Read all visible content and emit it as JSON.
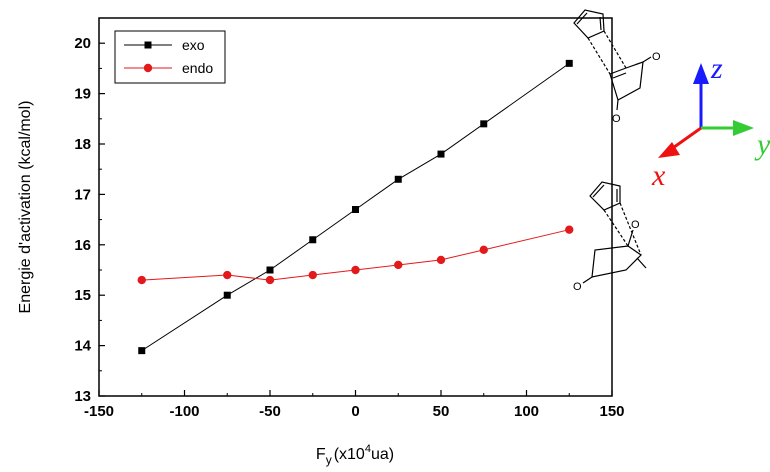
{
  "chart_data": {
    "type": "line",
    "xlabel": {
      "base": "F",
      "subscript": "y",
      "pre_sup": "(x10",
      "sup": "4",
      "post_sup": "ua)"
    },
    "ylabel": "Energie d'activation (kcal/mol)",
    "xlim": [
      -150,
      150
    ],
    "ylim": [
      13,
      20.5
    ],
    "xticks": [
      -150,
      -100,
      -50,
      0,
      50,
      100,
      150
    ],
    "yticks": [
      13,
      14,
      15,
      16,
      17,
      18,
      19,
      20
    ],
    "grid": false,
    "legend_position": "top-left",
    "x": [
      -125,
      -75,
      -50,
      -25,
      0,
      25,
      50,
      75,
      125
    ],
    "series": [
      {
        "name": "exo",
        "marker": "square",
        "color": "#000000",
        "values": [
          13.9,
          15.0,
          15.5,
          16.1,
          16.7,
          17.3,
          17.8,
          18.4,
          19.6
        ]
      },
      {
        "name": "endo",
        "marker": "circle",
        "color": "#e31a1c",
        "values": [
          15.3,
          15.4,
          15.3,
          15.4,
          15.5,
          15.6,
          15.7,
          15.9,
          16.3
        ]
      }
    ]
  },
  "coordinate_axes": {
    "z": {
      "label": "z",
      "color": "#1a1aff"
    },
    "y": {
      "label": "y",
      "color": "#33cc33"
    },
    "x": {
      "label": "x",
      "color": "#ee1111"
    }
  },
  "molecules": {
    "exo": {
      "atom_labels": [
        "O",
        "O"
      ]
    },
    "endo": {
      "atom_labels": [
        "O",
        "O"
      ]
    }
  }
}
